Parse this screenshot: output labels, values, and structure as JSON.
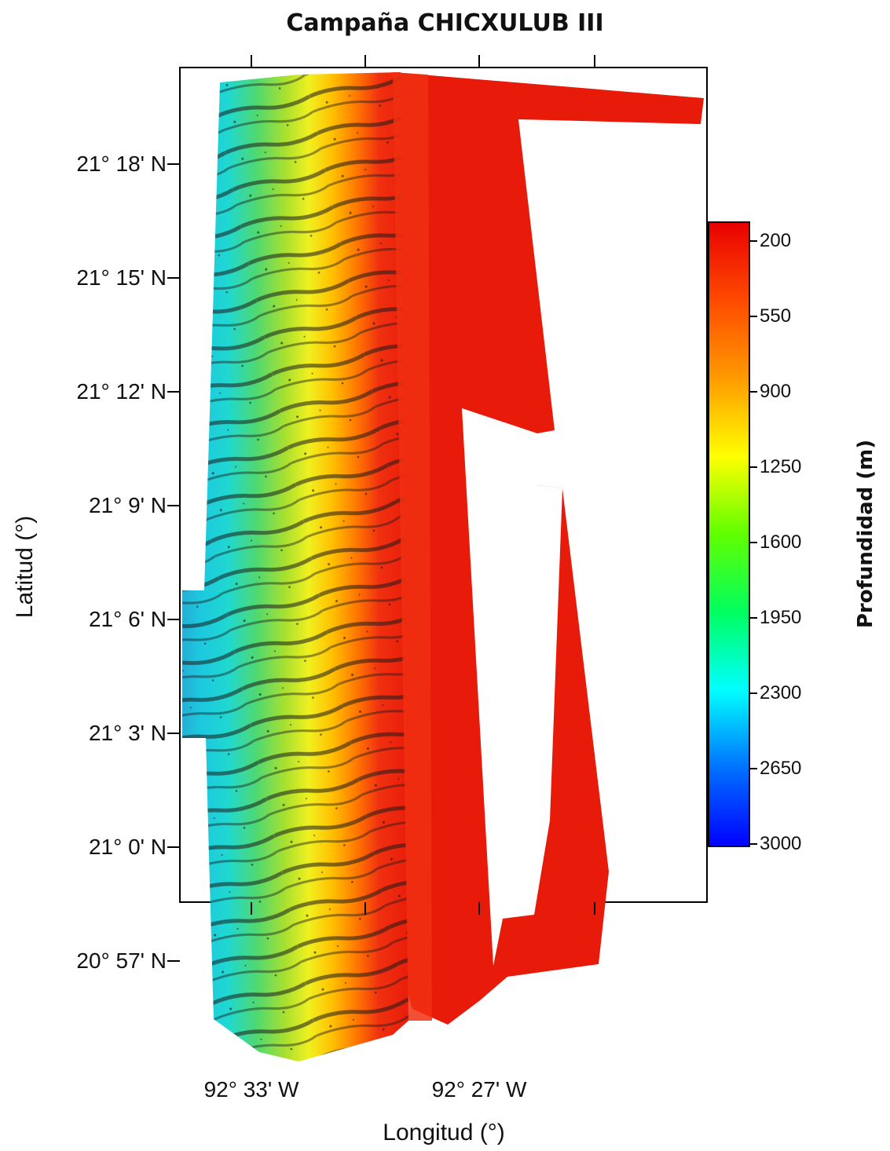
{
  "title": "Campaña CHICXULUB III",
  "axes": {
    "ylabel": "Latitud (°)",
    "xlabel": "Longitud (°)",
    "lat_ticks": [
      "21° 18' N",
      "21° 15' N",
      "21° 12' N",
      "21° 9' N",
      "21° 6' N",
      "21° 3' N",
      "21° 0' N",
      "20° 57' N"
    ],
    "lon_ticks": [
      "92° 33' W",
      "92° 27' W"
    ]
  },
  "colorbar": {
    "label": "Profundidad (m)",
    "ticks": [
      "200",
      "550",
      "900",
      "1250",
      "1600",
      "1950",
      "2300",
      "2650",
      "3000"
    ],
    "colors": [
      "#e80000",
      "#ff5a00",
      "#ffa000",
      "#ffff00",
      "#40e000",
      "#00ff80",
      "#00e8ff",
      "#0060ff",
      "#0000ff"
    ]
  },
  "map": {
    "shallow_color": "#e81a0a",
    "colormap_note": ""
  }
}
